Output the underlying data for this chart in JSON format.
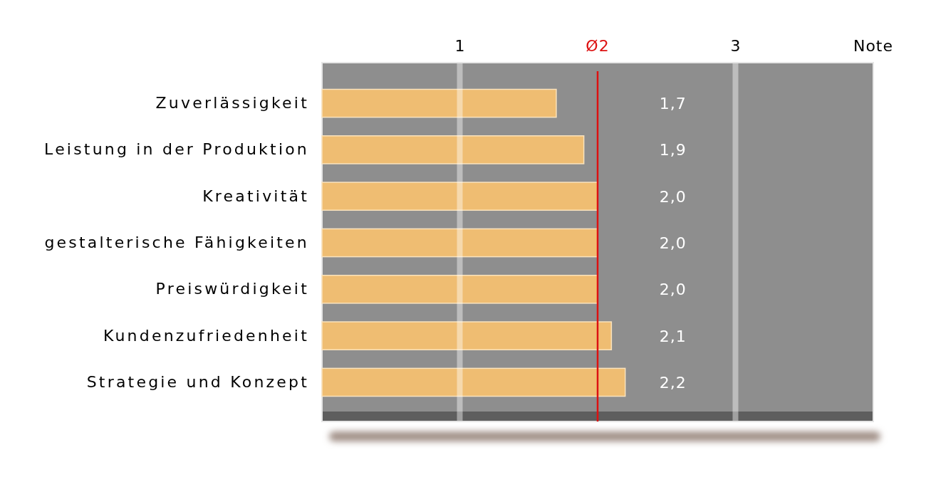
{
  "chart_data": {
    "type": "bar",
    "orientation": "horizontal",
    "categories": [
      "Zuverlässigkeit",
      "Leistung in der Produktion",
      "Kreativität",
      "gestalterische Fähigkeiten",
      "Preiswürdigkeit",
      "Kundenzufriedenheit",
      "Strategie und Konzept"
    ],
    "values": [
      1.7,
      1.9,
      2.0,
      2.0,
      2.0,
      2.1,
      2.2
    ],
    "value_labels": [
      "1,7",
      "1,9",
      "2,0",
      "2,0",
      "2,0",
      "2,1",
      "2,2"
    ],
    "color": "#efbd72",
    "xlabel": "Note",
    "xlim": [
      0,
      4
    ],
    "xticks": [
      1,
      3
    ],
    "grid": "x",
    "ref_lines": [
      {
        "axis": "x",
        "value": 2,
        "label": "Ø2",
        "color": "#dd1111"
      }
    ]
  }
}
